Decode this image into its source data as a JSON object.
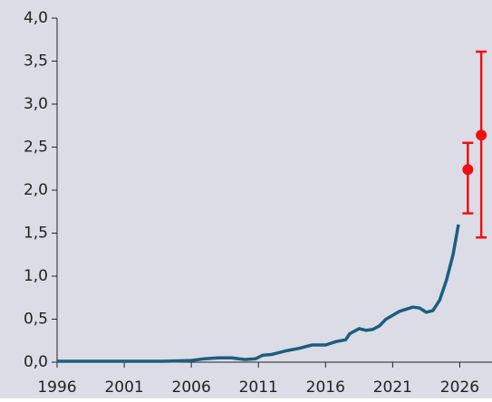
{
  "chart_data": {
    "type": "line",
    "background": "#dcdce6",
    "xlim": [
      1996,
      2028.4
    ],
    "ylim": [
      0,
      4
    ],
    "xticks": [
      1996,
      2001,
      2006,
      2011,
      2016,
      2021,
      2026
    ],
    "yticks": [
      {
        "value": 0,
        "label": "0,0"
      },
      {
        "value": 0.5,
        "label": "0,5"
      },
      {
        "value": 1,
        "label": "1,0"
      },
      {
        "value": 1.5,
        "label": "1,5"
      },
      {
        "value": 2,
        "label": "2,0"
      },
      {
        "value": 2.5,
        "label": "2,5"
      },
      {
        "value": 3,
        "label": "3,0"
      },
      {
        "value": 3.5,
        "label": "3,5"
      },
      {
        "value": 4,
        "label": "4,0"
      }
    ],
    "series": [
      {
        "color": "#1b5e80",
        "x": [
          1996,
          2000,
          2004,
          2006,
          2007,
          2008,
          2009,
          2010,
          2010.8,
          2011.3,
          2012,
          2013,
          2014,
          2015,
          2016,
          2016.8,
          2017.5,
          2017.8,
          2018.5,
          2019,
          2019.5,
          2020,
          2020.5,
          2021.5,
          2022.5,
          2023,
          2023.5,
          2024,
          2024.5,
          2025,
          2025.5,
          2025.9
        ],
        "values": [
          0.01,
          0.01,
          0.01,
          0.02,
          0.04,
          0.05,
          0.05,
          0.03,
          0.04,
          0.08,
          0.09,
          0.13,
          0.16,
          0.2,
          0.2,
          0.24,
          0.26,
          0.33,
          0.39,
          0.37,
          0.38,
          0.42,
          0.5,
          0.59,
          0.64,
          0.63,
          0.58,
          0.6,
          0.72,
          0.95,
          1.25,
          1.6
        ]
      }
    ],
    "error_points": {
      "color": "#ee1111",
      "points": [
        {
          "x": 2026.6,
          "y": 2.24,
          "low": 1.73,
          "high": 2.55
        },
        {
          "x": 2027.6,
          "y": 2.64,
          "low": 1.45,
          "high": 3.61
        }
      ]
    }
  }
}
